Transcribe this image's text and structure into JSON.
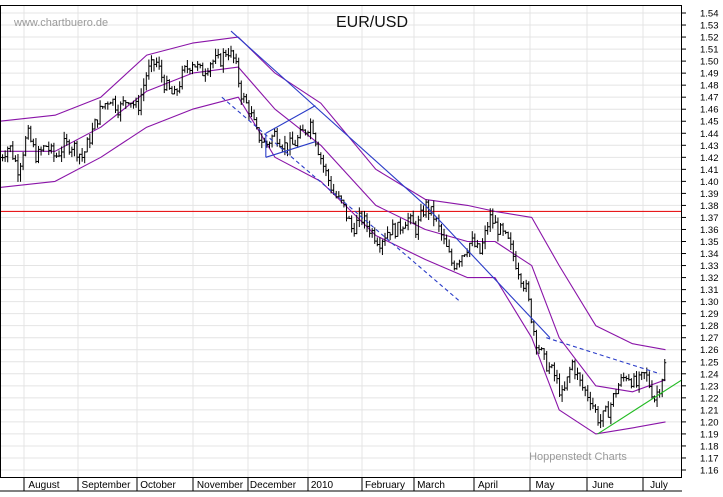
{
  "chart_data": {
    "type": "candlestick",
    "title": "EUR/USD",
    "watermark_top": "www.chartbuero.de",
    "watermark_bottom": "Hoppenstedt Charts",
    "x_axis_labels": [
      "August",
      "September",
      "October",
      "November",
      "December",
      "2010",
      "February",
      "March",
      "April",
      "May",
      "June",
      "July"
    ],
    "y_axis": {
      "min": 1.16,
      "max": 1.54,
      "step": 0.01,
      "position": "right"
    },
    "grid": true,
    "horizontal_line": {
      "y": 1.375,
      "color": "#e8191b"
    },
    "price_series": [
      {
        "d": 0,
        "c": 1.42
      },
      {
        "d": 5,
        "c": 1.43
      },
      {
        "d": 10,
        "c": 1.41
      },
      {
        "d": 15,
        "c": 1.44
      },
      {
        "d": 20,
        "c": 1.42
      },
      {
        "d": 25,
        "c": 1.43
      },
      {
        "d": 30,
        "c": 1.42
      },
      {
        "d": 35,
        "c": 1.43
      },
      {
        "d": 40,
        "c": 1.43
      },
      {
        "d": 45,
        "c": 1.42
      },
      {
        "d": 50,
        "c": 1.44
      },
      {
        "d": 55,
        "c": 1.46
      },
      {
        "d": 60,
        "c": 1.47
      },
      {
        "d": 65,
        "c": 1.46
      },
      {
        "d": 70,
        "c": 1.47
      },
      {
        "d": 75,
        "c": 1.46
      },
      {
        "d": 80,
        "c": 1.49
      },
      {
        "d": 85,
        "c": 1.5
      },
      {
        "d": 90,
        "c": 1.48
      },
      {
        "d": 95,
        "c": 1.47
      },
      {
        "d": 100,
        "c": 1.49
      },
      {
        "d": 105,
        "c": 1.5
      },
      {
        "d": 110,
        "c": 1.49
      },
      {
        "d": 115,
        "c": 1.5
      },
      {
        "d": 120,
        "c": 1.5
      },
      {
        "d": 124,
        "c": 1.51
      },
      {
        "d": 128,
        "c": 1.5
      },
      {
        "d": 132,
        "c": 1.47
      },
      {
        "d": 136,
        "c": 1.46
      },
      {
        "d": 140,
        "c": 1.44
      },
      {
        "d": 145,
        "c": 1.43
      },
      {
        "d": 150,
        "c": 1.44
      },
      {
        "d": 155,
        "c": 1.43
      },
      {
        "d": 160,
        "c": 1.43
      },
      {
        "d": 165,
        "c": 1.44
      },
      {
        "d": 170,
        "c": 1.45
      },
      {
        "d": 173,
        "c": 1.43
      },
      {
        "d": 177,
        "c": 1.41
      },
      {
        "d": 182,
        "c": 1.39
      },
      {
        "d": 187,
        "c": 1.38
      },
      {
        "d": 192,
        "c": 1.36
      },
      {
        "d": 197,
        "c": 1.37
      },
      {
        "d": 202,
        "c": 1.36
      },
      {
        "d": 207,
        "c": 1.35
      },
      {
        "d": 212,
        "c": 1.36
      },
      {
        "d": 217,
        "c": 1.36
      },
      {
        "d": 222,
        "c": 1.37
      },
      {
        "d": 227,
        "c": 1.36
      },
      {
        "d": 232,
        "c": 1.38
      },
      {
        "d": 237,
        "c": 1.37
      },
      {
        "d": 242,
        "c": 1.35
      },
      {
        "d": 247,
        "c": 1.33
      },
      {
        "d": 252,
        "c": 1.34
      },
      {
        "d": 257,
        "c": 1.35
      },
      {
        "d": 262,
        "c": 1.34
      },
      {
        "d": 267,
        "c": 1.37
      },
      {
        "d": 272,
        "c": 1.36
      },
      {
        "d": 277,
        "c": 1.35
      },
      {
        "d": 282,
        "c": 1.33
      },
      {
        "d": 287,
        "c": 1.31
      },
      {
        "d": 292,
        "c": 1.27
      },
      {
        "d": 297,
        "c": 1.25
      },
      {
        "d": 302,
        "c": 1.24
      },
      {
        "d": 307,
        "c": 1.22
      },
      {
        "d": 312,
        "c": 1.25
      },
      {
        "d": 317,
        "c": 1.23
      },
      {
        "d": 322,
        "c": 1.22
      },
      {
        "d": 327,
        "c": 1.2
      },
      {
        "d": 332,
        "c": 1.21
      },
      {
        "d": 337,
        "c": 1.23
      },
      {
        "d": 342,
        "c": 1.24
      },
      {
        "d": 347,
        "c": 1.23
      },
      {
        "d": 352,
        "c": 1.24
      },
      {
        "d": 357,
        "c": 1.22
      },
      {
        "d": 360,
        "c": 1.23
      },
      {
        "d": 363,
        "c": 1.25
      }
    ],
    "bollinger_upper": [
      {
        "d": 0,
        "y": 1.45
      },
      {
        "d": 30,
        "y": 1.455
      },
      {
        "d": 55,
        "y": 1.47
      },
      {
        "d": 80,
        "y": 1.505
      },
      {
        "d": 105,
        "y": 1.515
      },
      {
        "d": 130,
        "y": 1.52
      },
      {
        "d": 150,
        "y": 1.49
      },
      {
        "d": 175,
        "y": 1.465
      },
      {
        "d": 205,
        "y": 1.41
      },
      {
        "d": 232,
        "y": 1.385
      },
      {
        "d": 255,
        "y": 1.38
      },
      {
        "d": 270,
        "y": 1.375
      },
      {
        "d": 290,
        "y": 1.37
      },
      {
        "d": 305,
        "y": 1.33
      },
      {
        "d": 325,
        "y": 1.28
      },
      {
        "d": 345,
        "y": 1.265
      },
      {
        "d": 363,
        "y": 1.26
      }
    ],
    "bollinger_middle": [
      {
        "d": 0,
        "y": 1.425
      },
      {
        "d": 30,
        "y": 1.425
      },
      {
        "d": 55,
        "y": 1.445
      },
      {
        "d": 80,
        "y": 1.475
      },
      {
        "d": 105,
        "y": 1.49
      },
      {
        "d": 130,
        "y": 1.495
      },
      {
        "d": 150,
        "y": 1.46
      },
      {
        "d": 175,
        "y": 1.43
      },
      {
        "d": 205,
        "y": 1.38
      },
      {
        "d": 232,
        "y": 1.36
      },
      {
        "d": 255,
        "y": 1.35
      },
      {
        "d": 270,
        "y": 1.35
      },
      {
        "d": 290,
        "y": 1.33
      },
      {
        "d": 305,
        "y": 1.27
      },
      {
        "d": 325,
        "y": 1.23
      },
      {
        "d": 345,
        "y": 1.225
      },
      {
        "d": 363,
        "y": 1.235
      }
    ],
    "bollinger_lower": [
      {
        "d": 0,
        "y": 1.395
      },
      {
        "d": 30,
        "y": 1.4
      },
      {
        "d": 55,
        "y": 1.42
      },
      {
        "d": 80,
        "y": 1.445
      },
      {
        "d": 105,
        "y": 1.46
      },
      {
        "d": 130,
        "y": 1.47
      },
      {
        "d": 150,
        "y": 1.42
      },
      {
        "d": 175,
        "y": 1.4
      },
      {
        "d": 205,
        "y": 1.355
      },
      {
        "d": 232,
        "y": 1.335
      },
      {
        "d": 255,
        "y": 1.32
      },
      {
        "d": 270,
        "y": 1.32
      },
      {
        "d": 290,
        "y": 1.27
      },
      {
        "d": 305,
        "y": 1.21
      },
      {
        "d": 325,
        "y": 1.19
      },
      {
        "d": 345,
        "y": 1.195
      },
      {
        "d": 363,
        "y": 1.2
      }
    ],
    "trend_lines": [
      {
        "name": "downtrend-upper",
        "color": "#2a3cc8",
        "dashed": false,
        "from": {
          "d": 126,
          "y": 1.525
        },
        "to": {
          "d": 232,
          "y": 1.38
        }
      },
      {
        "name": "downtrend-upper-2",
        "color": "#2a3cc8",
        "dashed": false,
        "from": {
          "d": 232,
          "y": 1.38
        },
        "to": {
          "d": 300,
          "y": 1.27
        }
      },
      {
        "name": "dashed-channel",
        "color": "#2a3cc8",
        "dashed": true,
        "from": {
          "d": 121,
          "y": 1.47
        },
        "to": {
          "d": 251,
          "y": 1.3
        }
      },
      {
        "name": "flag-top",
        "color": "#2a3cc8",
        "dashed": false,
        "from": {
          "d": 145,
          "y": 1.44
        },
        "to": {
          "d": 172,
          "y": 1.463
        }
      },
      {
        "name": "flag-bottom",
        "color": "#2a3cc8",
        "dashed": false,
        "from": {
          "d": 145,
          "y": 1.42
        },
        "to": {
          "d": 172,
          "y": 1.433
        }
      },
      {
        "name": "flag-left",
        "color": "#2a3cc8",
        "dashed": false,
        "from": {
          "d": 145,
          "y": 1.44
        },
        "to": {
          "d": 145,
          "y": 1.42
        }
      },
      {
        "name": "june-resistance",
        "color": "#2a3cc8",
        "dashed": true,
        "from": {
          "d": 298,
          "y": 1.27
        },
        "to": {
          "d": 360,
          "y": 1.24
        }
      },
      {
        "name": "june-support",
        "color": "#22bb22",
        "dashed": false,
        "from": {
          "d": 326,
          "y": 1.19
        },
        "to": {
          "d": 372,
          "y": 1.235
        }
      }
    ]
  }
}
